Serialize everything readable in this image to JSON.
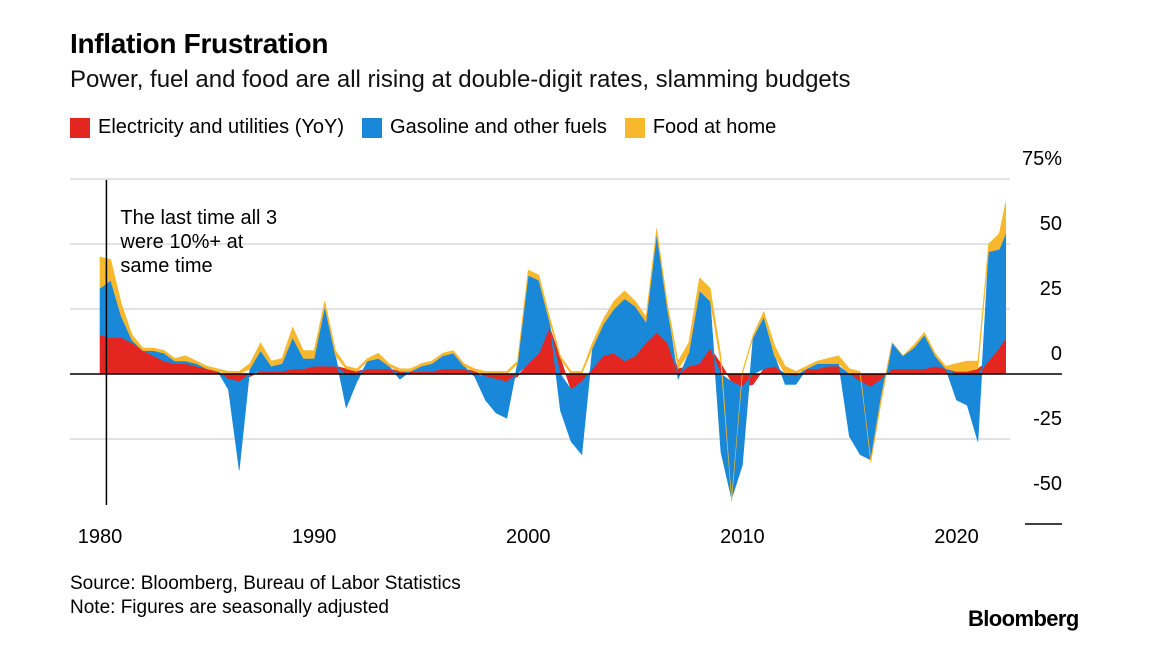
{
  "title": "Inflation Frustration",
  "subtitle": "Power, fuel and food are all rising at double-digit rates, slamming budgets",
  "legend": [
    {
      "label": "Electricity and utilities (YoY)",
      "color": "#e3261f"
    },
    {
      "label": "Gasoline and other fuels",
      "color": "#1a88d8"
    },
    {
      "label": "Food at home",
      "color": "#f7b82d"
    }
  ],
  "footer": {
    "source": "Source: Bloomberg, Bureau of Labor Statistics",
    "note": "Note: Figures are seasonally adjusted",
    "logo": "Bloomberg"
  },
  "chart_data": {
    "type": "area",
    "stacked": true,
    "title": "Inflation Frustration",
    "subtitle": "Power, fuel and food are all rising at double-digit rates, slamming budgets",
    "xlabel": "",
    "ylabel": "",
    "xlim": [
      1980,
      2022.5
    ],
    "ylim": [
      -50,
      75
    ],
    "x_ticks": [
      "1980",
      "1990",
      "2000",
      "2010",
      "2020"
    ],
    "y_ticks": [
      "75%",
      "50",
      "25",
      "0",
      "-25",
      "-50"
    ],
    "y_tick_values": [
      75,
      50,
      25,
      0,
      -25,
      -50
    ],
    "grid": true,
    "y_axis_side": "right",
    "annotation": {
      "x": 1980.3,
      "text": [
        "The last time all 3",
        "were 10%+ at",
        "same time"
      ]
    },
    "x": [
      1980.0,
      1980.5,
      1981.0,
      1981.5,
      1982.0,
      1982.5,
      1983.0,
      1983.5,
      1984.0,
      1984.5,
      1985.0,
      1985.5,
      1986.0,
      1986.5,
      1987.0,
      1987.5,
      1988.0,
      1988.5,
      1989.0,
      1989.5,
      1990.0,
      1990.5,
      1991.0,
      1991.5,
      1992.0,
      1992.5,
      1993.0,
      1993.5,
      1994.0,
      1994.5,
      1995.0,
      1995.5,
      1996.0,
      1996.5,
      1997.0,
      1997.5,
      1998.0,
      1998.5,
      1999.0,
      1999.5,
      2000.0,
      2000.5,
      2001.0,
      2001.5,
      2002.0,
      2002.5,
      2003.0,
      2003.5,
      2004.0,
      2004.5,
      2005.0,
      2005.5,
      2006.0,
      2006.5,
      2007.0,
      2007.5,
      2008.0,
      2008.5,
      2009.0,
      2009.5,
      2010.0,
      2010.5,
      2011.0,
      2011.5,
      2012.0,
      2012.5,
      2013.0,
      2013.5,
      2014.0,
      2014.5,
      2015.0,
      2015.5,
      2016.0,
      2016.5,
      2017.0,
      2017.5,
      2018.0,
      2018.5,
      2019.0,
      2019.5,
      2020.0,
      2020.5,
      2021.0,
      2021.5,
      2022.0,
      2022.3
    ],
    "series": [
      {
        "name": "Electricity and utilities (YoY)",
        "color": "#e3261f",
        "values": [
          15,
          14,
          14,
          12,
          9,
          7,
          5,
          4,
          4,
          3,
          2,
          1,
          -2,
          -3,
          -1,
          1,
          1,
          1,
          2,
          2,
          3,
          3,
          3,
          2,
          1,
          2,
          2,
          2,
          1,
          1,
          1,
          1,
          2,
          2,
          2,
          1,
          -1,
          -2,
          -3,
          -1,
          4,
          8,
          18,
          6,
          -6,
          -3,
          2,
          7,
          8,
          5,
          7,
          12,
          16,
          12,
          2,
          3,
          4,
          10,
          4,
          -3,
          -5,
          -4,
          2,
          3,
          0,
          -1,
          2,
          2,
          3,
          3,
          0,
          -3,
          -5,
          -2,
          2,
          2,
          2,
          2,
          3,
          2,
          1,
          1,
          2,
          5,
          10,
          14
        ]
      },
      {
        "name": "Gasoline and other fuels",
        "color": "#1a88d8",
        "values": [
          18,
          22,
          8,
          1,
          0,
          2,
          3,
          1,
          1,
          1,
          0,
          0,
          -4,
          -34,
          2,
          8,
          2,
          3,
          12,
          4,
          3,
          23,
          4,
          -13,
          -3,
          3,
          4,
          1,
          -2,
          0,
          2,
          3,
          5,
          6,
          1,
          -1,
          -9,
          -13,
          -14,
          4,
          34,
          28,
          2,
          -14,
          -20,
          -28,
          8,
          12,
          17,
          24,
          19,
          8,
          38,
          13,
          -2,
          5,
          28,
          18,
          -30,
          -45,
          -30,
          14,
          20,
          4,
          -4,
          -3,
          0,
          2,
          1,
          1,
          -24,
          -28,
          -28,
          -6,
          10,
          5,
          8,
          13,
          4,
          0,
          -10,
          -12,
          -26,
          42,
          38,
          40
        ]
      },
      {
        "name": "Food at home",
        "color": "#f7b82d",
        "values": [
          12,
          8,
          5,
          2,
          1,
          1,
          1,
          1,
          2,
          1,
          1,
          1,
          1,
          1,
          2,
          3,
          2,
          2,
          4,
          3,
          3,
          2,
          2,
          1,
          1,
          1,
          2,
          1,
          1,
          1,
          1,
          1,
          1,
          1,
          1,
          1,
          1,
          1,
          1,
          1,
          2,
          2,
          2,
          1,
          1,
          1,
          2,
          2,
          3,
          3,
          2,
          2,
          2,
          2,
          3,
          4,
          5,
          5,
          3,
          -1,
          1,
          1,
          2,
          4,
          3,
          1,
          1,
          1,
          2,
          3,
          2,
          1,
          -1,
          -2,
          0,
          0,
          1,
          1,
          1,
          1,
          3,
          4,
          3,
          3,
          6,
          12
        ]
      }
    ]
  }
}
